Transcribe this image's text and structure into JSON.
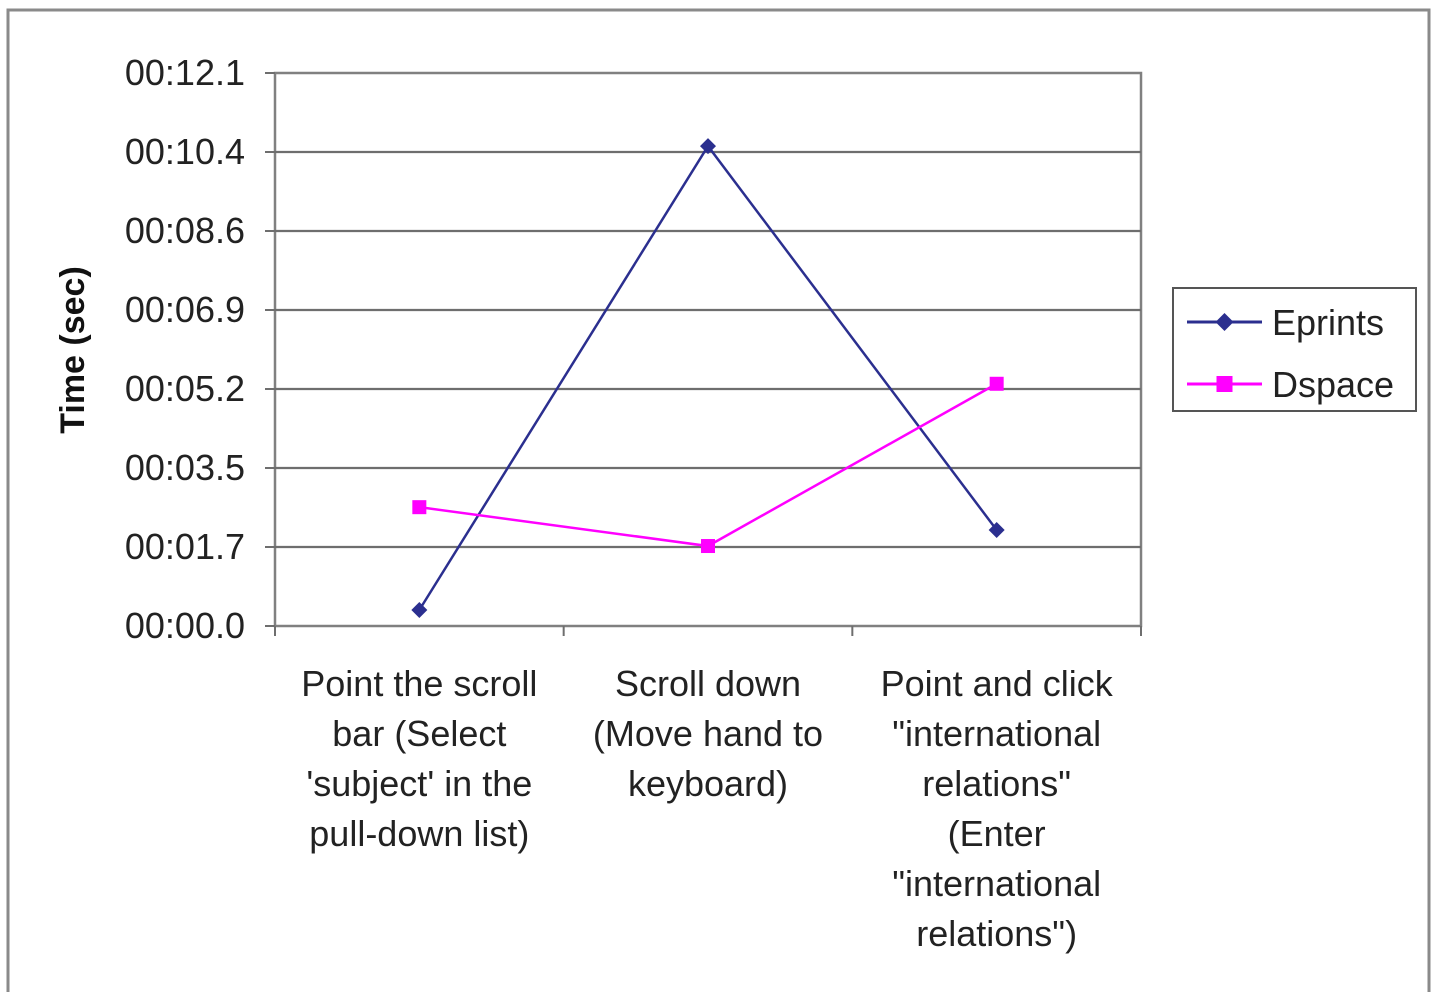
{
  "chart_data": {
    "type": "line",
    "title": "",
    "xlabel": "",
    "ylabel": "Time (sec)",
    "categories": [
      [
        "Point the scroll",
        "bar (Select",
        "'subject' in the",
        "pull-down list)"
      ],
      [
        "Scroll down",
        "(Move hand to",
        "keyboard)"
      ],
      [
        "Point and click",
        "\"international",
        "relations\"",
        "(Enter",
        "\"international",
        "relations\")"
      ]
    ],
    "y_ticks": [
      "00:00.0",
      "00:01.7",
      "00:03.5",
      "00:05.2",
      "00:06.9",
      "00:08.6",
      "00:10.4",
      "00:12.1"
    ],
    "ylim": [
      0,
      12.1
    ],
    "grid": true,
    "legend_position": "right",
    "series": [
      {
        "name": "Eprints",
        "color": "#2b2f8f",
        "marker": "diamond",
        "values": [
          0.35,
          10.5,
          2.1
        ]
      },
      {
        "name": "Dspace",
        "color": "#ff00ff",
        "marker": "square",
        "values": [
          2.6,
          1.75,
          5.3
        ]
      }
    ]
  }
}
